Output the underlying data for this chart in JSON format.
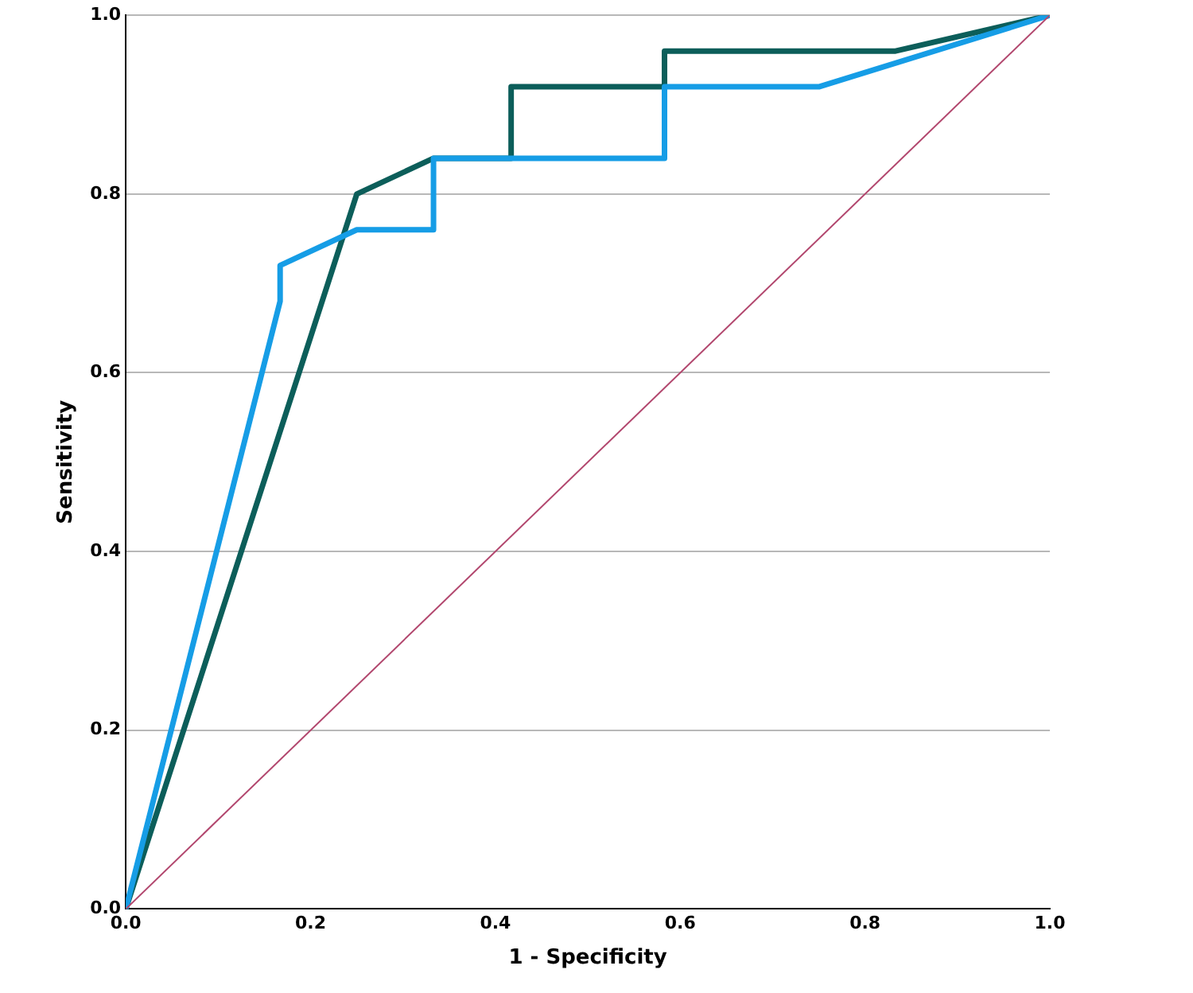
{
  "chart_data": {
    "type": "line",
    "xlabel": "1 - Specificity",
    "ylabel": "Sensitivity",
    "marker": "none",
    "grid": "y",
    "legend": false,
    "xlim": [
      0,
      1
    ],
    "ylim": [
      0,
      1
    ],
    "xticks": [
      {
        "value": 0,
        "label": "0.0"
      },
      {
        "value": 0.2,
        "label": "0.2"
      },
      {
        "value": 0.4,
        "label": "0.4"
      },
      {
        "value": 0.6,
        "label": "0.6"
      },
      {
        "value": 0.8,
        "label": "0.8"
      },
      {
        "value": 1,
        "label": "1.0"
      }
    ],
    "yticks": [
      {
        "value": 0,
        "label": "0.0"
      },
      {
        "value": 0.2,
        "label": "0.2"
      },
      {
        "value": 0.4,
        "label": "0.4"
      },
      {
        "value": 0.6,
        "label": "0.6"
      },
      {
        "value": 0.8,
        "label": "0.8"
      },
      {
        "value": 1,
        "label": "1.0"
      }
    ],
    "series": [
      {
        "color": "#b2476e",
        "x": [
          0,
          1
        ],
        "values": [
          0,
          1
        ]
      },
      {
        "color": "#169de6",
        "x": [
          0,
          0.167,
          0.167,
          0.25,
          0.333,
          0.333,
          0.583,
          0.583,
          0.75,
          1
        ],
        "values": [
          0,
          0.68,
          0.72,
          0.76,
          0.76,
          0.84,
          0.84,
          0.92,
          0.92,
          1
        ]
      },
      {
        "color": "#0c5e5a",
        "x": [
          0,
          0.25,
          0.333,
          0.417,
          0.417,
          0.583,
          0.583,
          0.833,
          1
        ],
        "values": [
          0,
          0.8,
          0.84,
          0.84,
          0.92,
          0.92,
          0.96,
          0.96,
          1
        ]
      }
    ]
  }
}
